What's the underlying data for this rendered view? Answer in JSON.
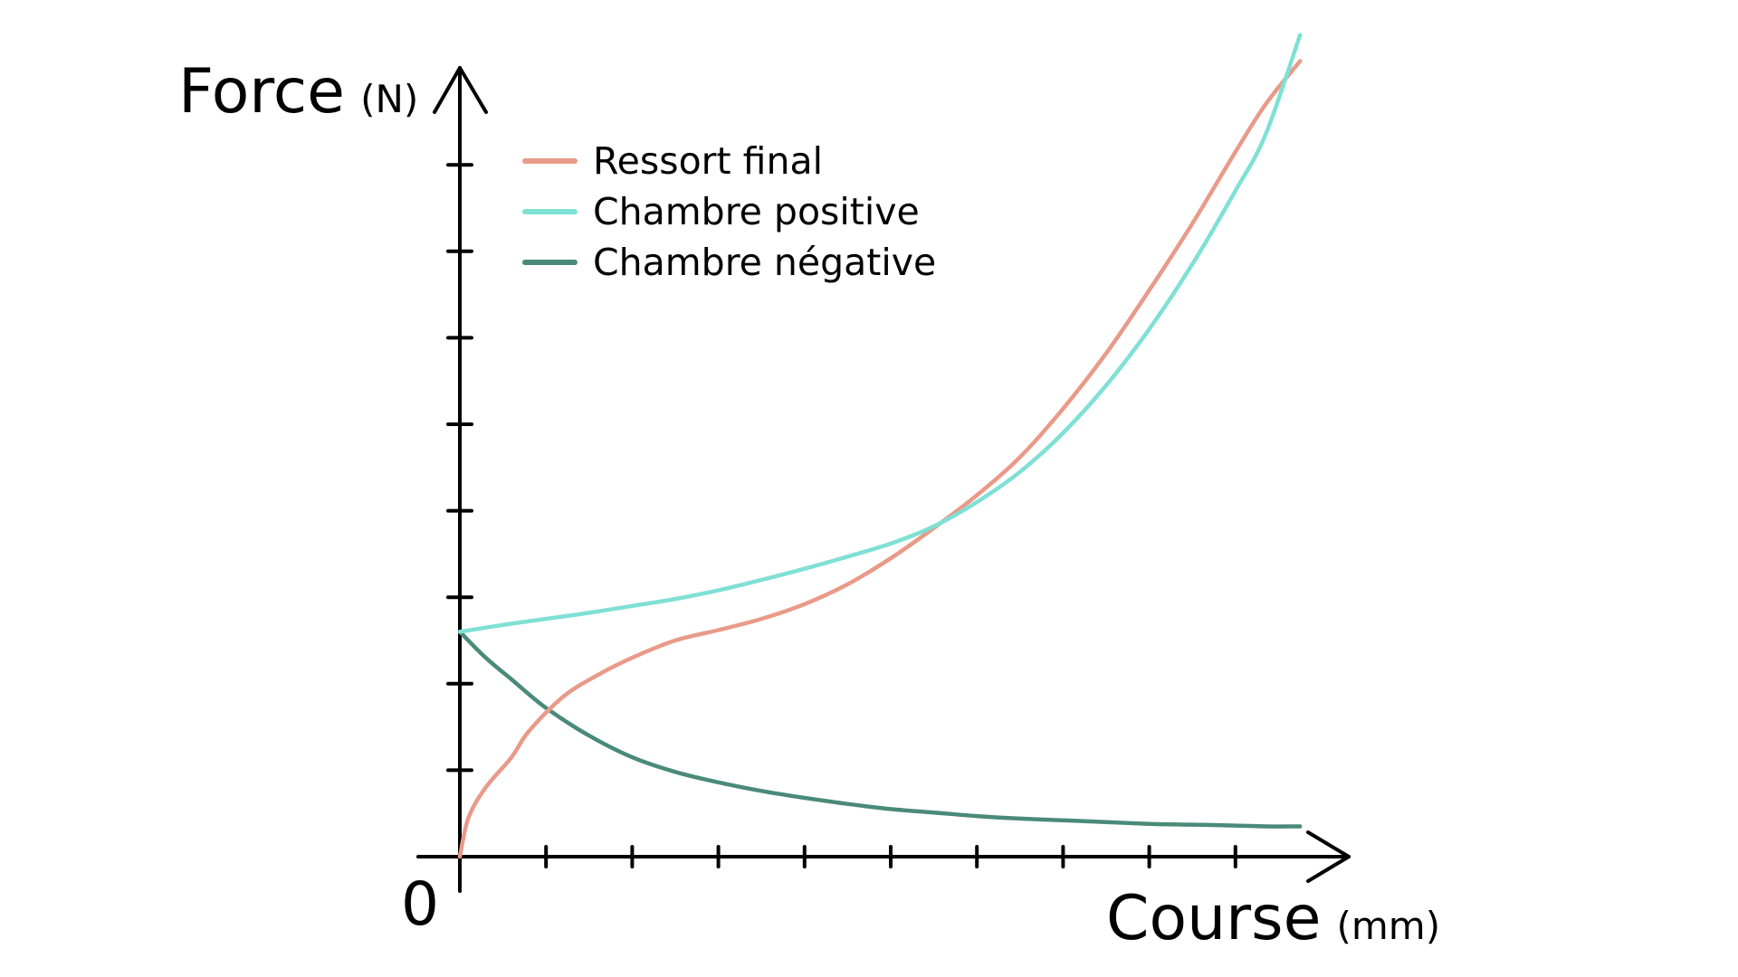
{
  "chart_data": {
    "type": "line",
    "xlabel": "Course",
    "xlabel_unit": "(mm)",
    "ylabel": "Force",
    "ylabel_unit": "(N)",
    "origin_label": "0",
    "xlim": [
      0,
      10.3
    ],
    "ylim": [
      0,
      8.6
    ],
    "x_ticks": [
      1,
      2,
      3,
      4,
      5,
      6,
      7,
      8,
      9
    ],
    "y_ticks": [
      1,
      2,
      3,
      4,
      5,
      6,
      7,
      8
    ],
    "grid": false,
    "legend_position": "top-left",
    "series": [
      {
        "name": "Ressort final",
        "color": "#E99A88",
        "x": [
          0,
          0.1,
          0.3,
          0.6,
          0.8,
          1.2,
          1.6,
          2.0,
          2.5,
          3.0,
          3.5,
          4.0,
          4.5,
          5.0,
          5.5,
          6.0,
          6.5,
          7.0,
          7.5,
          8.0,
          8.5,
          9.0,
          9.35,
          9.75
        ],
        "y": [
          0.0,
          0.45,
          0.8,
          1.15,
          1.45,
          1.85,
          2.1,
          2.3,
          2.5,
          2.62,
          2.75,
          2.92,
          3.15,
          3.45,
          3.8,
          4.18,
          4.62,
          5.18,
          5.82,
          6.55,
          7.32,
          8.15,
          8.7,
          9.2
        ]
      },
      {
        "name": "Chambre positive",
        "color": "#7FE0D4",
        "x": [
          0,
          0.5,
          1.0,
          1.5,
          2.0,
          2.5,
          3.0,
          3.5,
          4.0,
          4.5,
          5.0,
          5.5,
          6.0,
          6.5,
          7.0,
          7.5,
          8.0,
          8.5,
          9.0,
          9.35,
          9.75
        ],
        "y": [
          2.6,
          2.68,
          2.75,
          2.82,
          2.9,
          2.98,
          3.08,
          3.2,
          3.33,
          3.47,
          3.62,
          3.82,
          4.1,
          4.45,
          4.9,
          5.45,
          6.1,
          6.85,
          7.7,
          8.35,
          9.5
        ]
      },
      {
        "name": "Chambre négative",
        "color": "#4A8A7A",
        "x": [
          0,
          0.3,
          0.6,
          1.0,
          1.5,
          2.0,
          2.5,
          3.0,
          3.5,
          4.0,
          4.5,
          5.0,
          5.5,
          6.0,
          6.5,
          7.0,
          7.5,
          8.0,
          8.5,
          9.0,
          9.35,
          9.75
        ],
        "y": [
          2.6,
          2.3,
          2.05,
          1.72,
          1.4,
          1.15,
          0.98,
          0.86,
          0.76,
          0.68,
          0.61,
          0.55,
          0.51,
          0.47,
          0.44,
          0.42,
          0.4,
          0.38,
          0.37,
          0.36,
          0.35,
          0.35
        ]
      }
    ]
  }
}
